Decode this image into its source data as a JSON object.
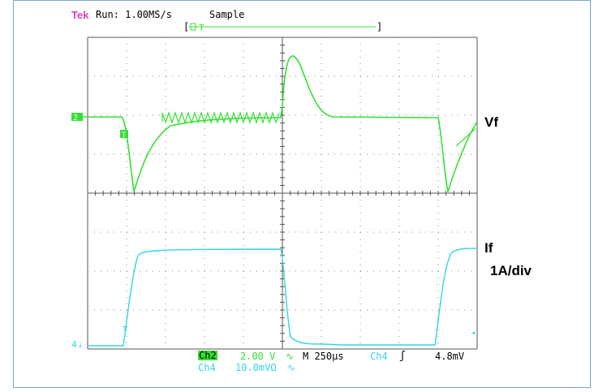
{
  "header": {
    "brand": "Tek",
    "run_state": "Run: 1.00MS/s",
    "mode": "Sample",
    "record_bracket_left": "[",
    "record_bracket_right": "]",
    "trigger_marker": "T"
  },
  "colors": {
    "ch2": "#33e033",
    "ch4": "#33d6e6",
    "brand": "#e040c0",
    "grid": "#555555"
  },
  "markers": {
    "ch2_ground": "2",
    "ch4_ground": "4",
    "trigger_point": "T"
  },
  "labels": {
    "vf": "Vf",
    "if": "If",
    "if_scale": "1A/div"
  },
  "status": {
    "ch2_name": "Ch2",
    "ch2_scale": "2.00 V",
    "ch2_coupling": "∿",
    "timebase": "M 250µs",
    "trig_source": "Ch4",
    "trig_slope": "ʃ",
    "trig_level": "4.8mV",
    "ch4_name": "Ch4",
    "ch4_scale": "10.0mVΩ",
    "ch4_coupling": "∿"
  }
}
